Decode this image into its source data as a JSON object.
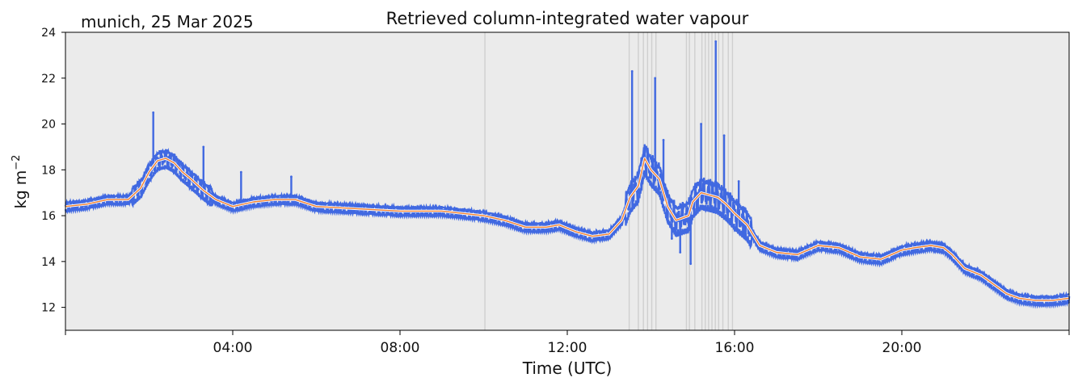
{
  "chart_data": {
    "type": "scatter",
    "station_label": "munich, 25 Mar 2025",
    "title": "Retrieved column-integrated water vapour",
    "xlabel": "Time (UTC)",
    "ylabel": "kg m",
    "ylabel_superscript": "−2",
    "xlim": [
      0,
      24
    ],
    "ylim": [
      11,
      24
    ],
    "x_ticks": [
      {
        "value": 4,
        "label": "04:00"
      },
      {
        "value": 8,
        "label": "08:00"
      },
      {
        "value": 12,
        "label": "12:00"
      },
      {
        "value": 16,
        "label": "16:00"
      },
      {
        "value": 20,
        "label": "20:00"
      }
    ],
    "y_ticks": [
      12,
      14,
      16,
      18,
      20,
      22,
      24
    ],
    "grid": false,
    "background_color": "#ebebeb",
    "colors": {
      "raw": "#4169e1",
      "smoothed": "#f08030",
      "flag": "#cfcfcf"
    },
    "flagged_times": [
      10.03,
      13.48,
      13.7,
      13.82,
      13.92,
      14.02,
      14.12,
      14.85,
      14.92,
      15.05,
      15.22,
      15.3,
      15.38,
      15.46,
      15.54,
      15.62,
      15.72,
      15.85,
      15.95
    ],
    "series": [
      {
        "kind": "smoothed",
        "x": [
          0.0,
          0.5,
          1.0,
          1.5,
          1.8,
          2.0,
          2.2,
          2.4,
          2.6,
          2.8,
          3.0,
          3.3,
          3.6,
          4.0,
          4.5,
          5.0,
          5.5,
          6.0,
          7.0,
          8.0,
          9.0,
          10.0,
          10.5,
          11.0,
          11.5,
          11.8,
          12.2,
          12.6,
          13.0,
          13.3,
          13.5,
          13.7,
          13.85,
          14.0,
          14.2,
          14.4,
          14.6,
          14.9,
          15.0,
          15.2,
          15.4,
          15.6,
          15.8,
          16.0,
          16.3,
          16.6,
          17.0,
          17.5,
          18.0,
          18.5,
          19.0,
          19.5,
          20.0,
          20.3,
          20.7,
          21.0,
          21.2,
          21.5,
          21.9,
          22.2,
          22.5,
          22.8,
          23.2,
          23.6,
          24.0
        ],
        "y": [
          16.4,
          16.5,
          16.7,
          16.7,
          17.2,
          17.9,
          18.4,
          18.5,
          18.3,
          17.9,
          17.6,
          17.1,
          16.7,
          16.4,
          16.6,
          16.7,
          16.7,
          16.4,
          16.3,
          16.2,
          16.2,
          16.0,
          15.8,
          15.5,
          15.5,
          15.6,
          15.3,
          15.1,
          15.2,
          15.8,
          16.8,
          17.3,
          18.5,
          18.0,
          17.6,
          16.4,
          15.8,
          16.0,
          16.6,
          17.0,
          16.9,
          16.8,
          16.5,
          16.1,
          15.6,
          14.7,
          14.4,
          14.3,
          14.7,
          14.6,
          14.2,
          14.1,
          14.5,
          14.6,
          14.7,
          14.6,
          14.3,
          13.7,
          13.4,
          13.0,
          12.6,
          12.4,
          12.3,
          12.3,
          12.4
        ]
      }
    ],
    "raw_points_estimated": [
      {
        "x": 2.1,
        "y": 20.5
      },
      {
        "x": 3.3,
        "y": 19.0
      },
      {
        "x": 4.2,
        "y": 17.9
      },
      {
        "x": 5.4,
        "y": 17.7
      },
      {
        "x": 13.55,
        "y": 22.3
      },
      {
        "x": 14.1,
        "y": 22.0
      },
      {
        "x": 14.3,
        "y": 19.3
      },
      {
        "x": 14.5,
        "y": 15.0
      },
      {
        "x": 14.7,
        "y": 14.4
      },
      {
        "x": 14.95,
        "y": 13.9
      },
      {
        "x": 15.2,
        "y": 20.0
      },
      {
        "x": 15.55,
        "y": 23.6
      },
      {
        "x": 15.75,
        "y": 19.5
      },
      {
        "x": 16.1,
        "y": 17.5
      },
      {
        "x": 16.2,
        "y": 15.1
      }
    ]
  }
}
